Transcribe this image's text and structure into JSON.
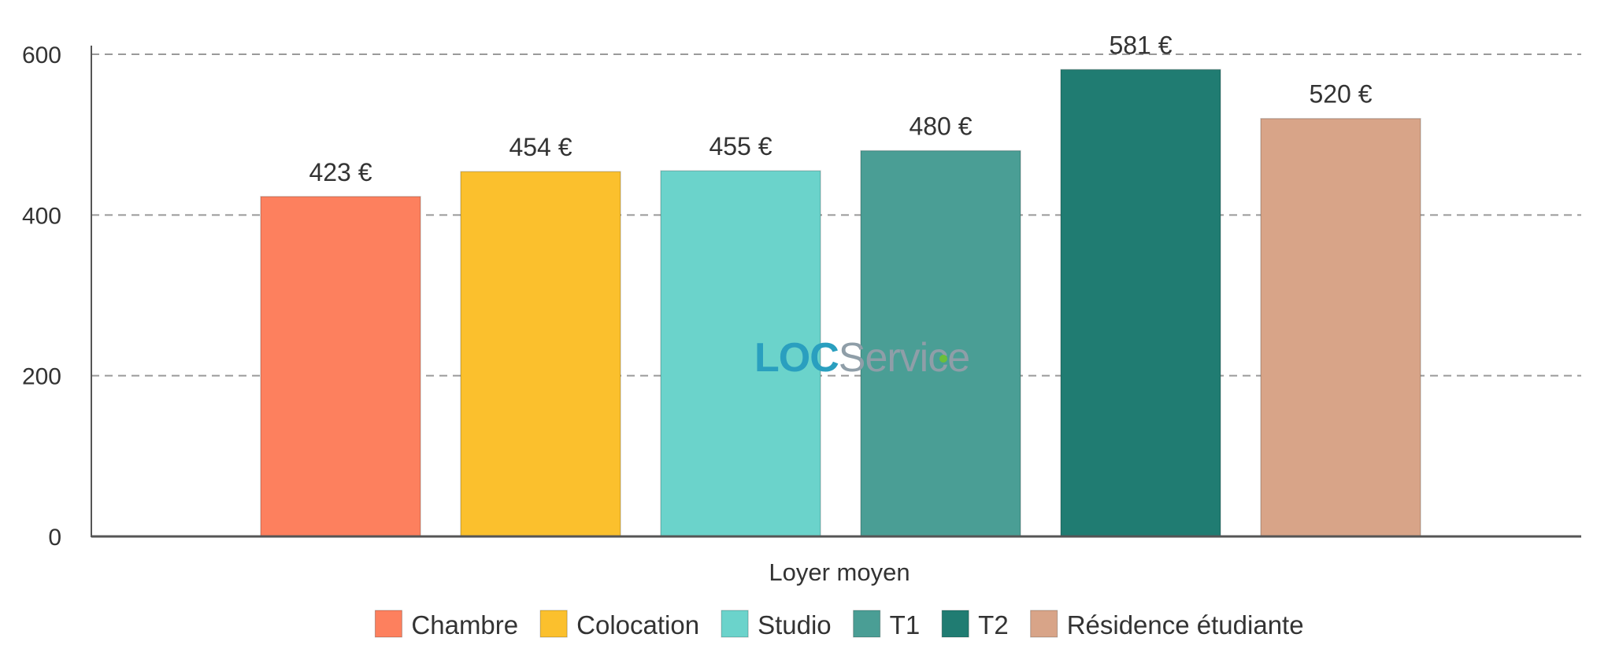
{
  "watermark": {
    "part1": "LOC",
    "part2": "Service",
    "part1_color": "#2a9fbf",
    "part2_color": "#8f9ea8",
    "accent_color": "#6cbf3a"
  },
  "chart_data": {
    "type": "bar",
    "categories": [
      "Loyer moyen"
    ],
    "series": [
      {
        "name": "Chambre",
        "values": [
          423
        ],
        "label": "423 €",
        "color": "#fd805e"
      },
      {
        "name": "Colocation",
        "values": [
          454
        ],
        "label": "454 €",
        "color": "#fbc02d"
      },
      {
        "name": "Studio",
        "values": [
          455
        ],
        "label": "455 €",
        "color": "#6bd3cb"
      },
      {
        "name": "T1",
        "values": [
          480
        ],
        "label": "480 €",
        "color": "#4a9e95"
      },
      {
        "name": "T2",
        "values": [
          581
        ],
        "label": "581 €",
        "color": "#207c72"
      },
      {
        "name": "Résidence étudiante",
        "values": [
          520
        ],
        "label": "520 €",
        "color": "#d8a488"
      }
    ],
    "yticks": [
      "0",
      "200",
      "400",
      "600"
    ],
    "ylim": [
      0,
      600
    ],
    "grid": true,
    "legend": "bottom-center",
    "title": "",
    "xlabel": "",
    "ylabel": ""
  }
}
